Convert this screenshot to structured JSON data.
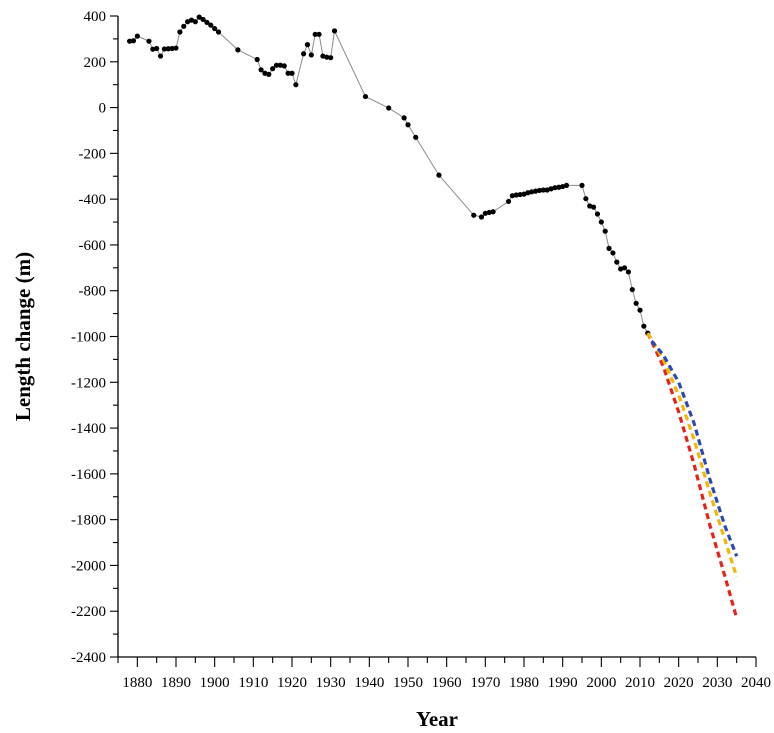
{
  "chart_data": {
    "type": "line",
    "title": "",
    "xlabel": "Year",
    "ylabel": "Length change (m)",
    "xlim": [
      1875,
      2040
    ],
    "ylim": [
      -2400,
      400
    ],
    "x_major_ticks": [
      1880,
      1890,
      1900,
      1910,
      1920,
      1930,
      1940,
      1950,
      1960,
      1970,
      1980,
      1990,
      2000,
      2010,
      2020,
      2030,
      2040
    ],
    "y_major_ticks": [
      400,
      200,
      0,
      -200,
      -400,
      -600,
      -800,
      -1000,
      -1200,
      -1400,
      -1600,
      -1800,
      -2000,
      -2200,
      -2400
    ],
    "grid": false,
    "legend": "none",
    "series": [
      {
        "color": "#000000",
        "style": "line-with-markers",
        "line_color": "#8c8c8c",
        "points": [
          [
            1878,
            290
          ],
          [
            1879,
            292
          ],
          [
            1880,
            312
          ],
          [
            1883,
            290
          ],
          [
            1884,
            255
          ],
          [
            1885,
            258
          ],
          [
            1886,
            225
          ],
          [
            1887,
            256
          ],
          [
            1888,
            257
          ],
          [
            1889,
            258
          ],
          [
            1890,
            260
          ],
          [
            1891,
            330
          ],
          [
            1892,
            355
          ],
          [
            1893,
            375
          ],
          [
            1894,
            382
          ],
          [
            1895,
            375
          ],
          [
            1896,
            395
          ],
          [
            1897,
            385
          ],
          [
            1898,
            372
          ],
          [
            1899,
            360
          ],
          [
            1900,
            345
          ],
          [
            1901,
            330
          ],
          [
            1906,
            252
          ],
          [
            1911,
            210
          ],
          [
            1912,
            165
          ],
          [
            1913,
            150
          ],
          [
            1914,
            145
          ],
          [
            1915,
            170
          ],
          [
            1916,
            185
          ],
          [
            1917,
            185
          ],
          [
            1918,
            182
          ],
          [
            1919,
            150
          ],
          [
            1920,
            150
          ],
          [
            1921,
            100
          ],
          [
            1923,
            235
          ],
          [
            1924,
            275
          ],
          [
            1925,
            230
          ],
          [
            1926,
            320
          ],
          [
            1927,
            320
          ],
          [
            1928,
            225
          ],
          [
            1929,
            220
          ],
          [
            1930,
            218
          ],
          [
            1931,
            335
          ],
          [
            1939,
            48
          ],
          [
            1945,
            -2
          ],
          [
            1949,
            -45
          ],
          [
            1950,
            -75
          ],
          [
            1952,
            -130
          ],
          [
            1958,
            -295
          ],
          [
            1967,
            -470
          ],
          [
            1969,
            -478
          ],
          [
            1970,
            -462
          ],
          [
            1971,
            -458
          ],
          [
            1972,
            -455
          ],
          [
            1976,
            -410
          ],
          [
            1977,
            -385
          ],
          [
            1978,
            -382
          ],
          [
            1979,
            -380
          ],
          [
            1980,
            -378
          ],
          [
            1981,
            -372
          ],
          [
            1982,
            -368
          ],
          [
            1983,
            -365
          ],
          [
            1984,
            -362
          ],
          [
            1985,
            -360
          ],
          [
            1986,
            -360
          ],
          [
            1987,
            -355
          ],
          [
            1988,
            -350
          ],
          [
            1989,
            -348
          ],
          [
            1990,
            -345
          ],
          [
            1991,
            -340
          ],
          [
            1995,
            -340
          ],
          [
            1996,
            -398
          ],
          [
            1997,
            -430
          ],
          [
            1998,
            -435
          ],
          [
            1999,
            -465
          ],
          [
            2000,
            -500
          ],
          [
            2001,
            -540
          ],
          [
            2002,
            -615
          ],
          [
            2003,
            -635
          ],
          [
            2004,
            -675
          ],
          [
            2005,
            -705
          ],
          [
            2006,
            -700
          ],
          [
            2007,
            -718
          ],
          [
            2008,
            -795
          ],
          [
            2009,
            -855
          ],
          [
            2010,
            -885
          ],
          [
            2011,
            -955
          ],
          [
            2012,
            -985
          ]
        ]
      },
      {
        "color": "#e8221b",
        "style": "dashed",
        "points": [
          [
            2012,
            -985
          ],
          [
            2016,
            -1130
          ],
          [
            2020,
            -1330
          ],
          [
            2024,
            -1560
          ],
          [
            2028,
            -1820
          ],
          [
            2032,
            -2050
          ],
          [
            2035,
            -2230
          ]
        ]
      },
      {
        "color": "#f2b705",
        "style": "dashed",
        "points": [
          [
            2012,
            -985
          ],
          [
            2016,
            -1100
          ],
          [
            2020,
            -1255
          ],
          [
            2024,
            -1450
          ],
          [
            2028,
            -1680
          ],
          [
            2032,
            -1890
          ],
          [
            2035,
            -2050
          ]
        ]
      },
      {
        "color": "#2b4ab3",
        "style": "dashed",
        "points": [
          [
            2013,
            -1020
          ],
          [
            2016,
            -1080
          ],
          [
            2020,
            -1200
          ],
          [
            2024,
            -1380
          ],
          [
            2028,
            -1620
          ],
          [
            2032,
            -1830
          ],
          [
            2035,
            -1960
          ]
        ]
      }
    ]
  }
}
